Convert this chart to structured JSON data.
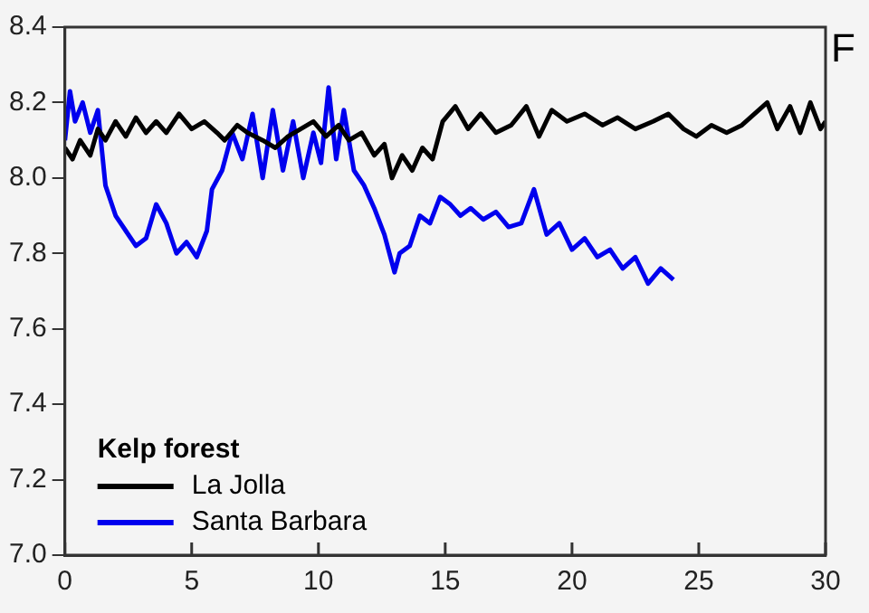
{
  "chart_data": {
    "type": "line",
    "legend_title": "Kelp forest",
    "legend": "bottom left",
    "grid": false,
    "marker": "none",
    "line_style": "solid",
    "xlim": [
      0,
      30
    ],
    "xticks": [
      0,
      5,
      10,
      15,
      20,
      25,
      30
    ],
    "ylim": [
      7.0,
      8.4
    ],
    "yticks": [
      {
        "value": 7,
        "label": "7.0"
      },
      7.2,
      7.4,
      7.6,
      7.8,
      {
        "value": 8,
        "label": "8.0"
      },
      8.2,
      8.4
    ],
    "annotations": [
      "F"
    ],
    "series": [
      {
        "name": "La Jolla",
        "color": "#000000",
        "x": [
          0,
          0.3,
          0.6,
          1,
          1.3,
          1.6,
          2,
          2.4,
          2.8,
          3.2,
          3.6,
          4,
          4.5,
          5,
          5.5,
          6,
          6.3,
          6.8,
          7.2,
          7.8,
          8.3,
          8.8,
          9.3,
          9.8,
          10.3,
          10.8,
          11.2,
          11.7,
          12.2,
          12.6,
          12.9,
          13.3,
          13.7,
          14.1,
          14.5,
          14.9,
          15.4,
          15.9,
          16.4,
          17,
          17.6,
          18.2,
          18.7,
          19.2,
          19.8,
          20.5,
          21.2,
          21.8,
          22.5,
          23.2,
          23.8,
          24.4,
          24.9,
          25.5,
          26.1,
          26.7,
          27.2,
          27.7,
          28.1,
          28.6,
          29,
          29.4,
          29.8,
          30
        ],
        "values": [
          8.08,
          8.05,
          8.1,
          8.06,
          8.13,
          8.1,
          8.15,
          8.11,
          8.16,
          8.12,
          8.15,
          8.12,
          8.17,
          8.13,
          8.15,
          8.12,
          8.1,
          8.14,
          8.12,
          8.1,
          8.08,
          8.11,
          8.13,
          8.15,
          8.11,
          8.14,
          8.1,
          8.12,
          8.06,
          8.09,
          8.0,
          8.06,
          8.02,
          8.08,
          8.05,
          8.15,
          8.19,
          8.13,
          8.17,
          8.12,
          8.14,
          8.19,
          8.11,
          8.18,
          8.15,
          8.17,
          8.14,
          8.16,
          8.13,
          8.15,
          8.17,
          8.13,
          8.11,
          8.14,
          8.12,
          8.14,
          8.17,
          8.2,
          8.13,
          8.19,
          8.12,
          8.2,
          8.13,
          8.15
        ]
      },
      {
        "name": "Santa Barbara",
        "color": "#0000ee",
        "x": [
          0,
          0.2,
          0.4,
          0.7,
          1,
          1.3,
          1.6,
          2,
          2.4,
          2.8,
          3.2,
          3.6,
          4,
          4.4,
          4.8,
          5.2,
          5.6,
          5.8,
          6.2,
          6.6,
          7,
          7.4,
          7.8,
          8.2,
          8.6,
          9,
          9.4,
          9.8,
          10.1,
          10.4,
          10.7,
          11,
          11.4,
          11.8,
          12.2,
          12.6,
          13,
          13.2,
          13.6,
          14,
          14.4,
          14.8,
          15.2,
          15.6,
          16,
          16.5,
          17,
          17.5,
          18,
          18.5,
          19,
          19.5,
          20,
          20.5,
          21,
          21.5,
          22,
          22.5,
          23,
          23.5,
          24
        ],
        "values": [
          8.1,
          8.23,
          8.15,
          8.2,
          8.12,
          8.18,
          7.98,
          7.9,
          7.86,
          7.82,
          7.84,
          7.93,
          7.88,
          7.8,
          7.83,
          7.79,
          7.86,
          7.97,
          8.02,
          8.12,
          8.05,
          8.17,
          8.0,
          8.18,
          8.02,
          8.15,
          8.0,
          8.12,
          8.04,
          8.24,
          8.05,
          8.18,
          8.02,
          7.98,
          7.92,
          7.85,
          7.75,
          7.8,
          7.82,
          7.9,
          7.88,
          7.95,
          7.93,
          7.9,
          7.92,
          7.89,
          7.91,
          7.87,
          7.88,
          7.97,
          7.85,
          7.88,
          7.81,
          7.84,
          7.79,
          7.81,
          7.76,
          7.79,
          7.72,
          7.76,
          7.73
        ]
      }
    ]
  }
}
